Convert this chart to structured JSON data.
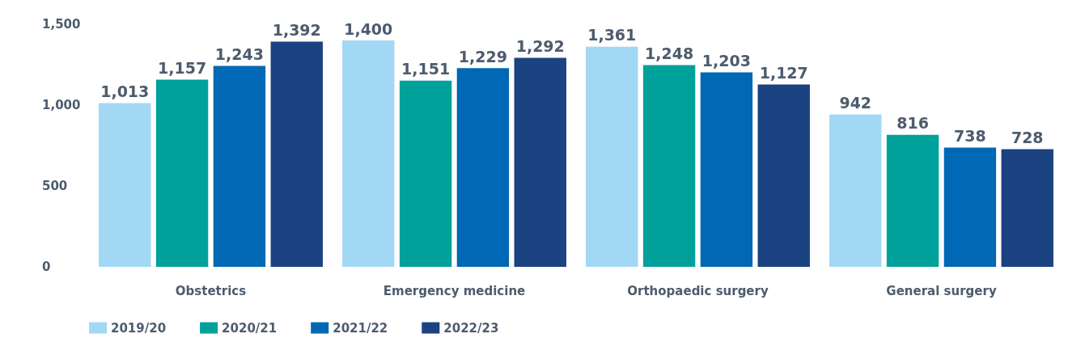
{
  "chart_data": {
    "type": "bar",
    "categories": [
      "Obstetrics",
      "Emergency medicine",
      "Orthopaedic surgery",
      "General surgery"
    ],
    "series": [
      {
        "name": "2019/20",
        "color": "#a3d8f5",
        "values": [
          1013,
          1400,
          1361,
          942
        ],
        "value_labels": [
          "1,013",
          "1,400",
          "1,361",
          "942"
        ]
      },
      {
        "name": "2020/21",
        "color": "#00a19a",
        "values": [
          1157,
          1151,
          1248,
          816
        ],
        "value_labels": [
          "1,157",
          "1,151",
          "1,248",
          "816"
        ]
      },
      {
        "name": "2021/22",
        "color": "#0068b4",
        "values": [
          1243,
          1229,
          1203,
          738
        ],
        "value_labels": [
          "1,243",
          "1,229",
          "1,203",
          "738"
        ]
      },
      {
        "name": "2022/23",
        "color": "#1b4281",
        "values": [
          1392,
          1292,
          1127,
          728
        ],
        "value_labels": [
          "1,392",
          "1,292",
          "1,127",
          "728"
        ]
      }
    ],
    "ylim": [
      0,
      1500
    ],
    "yticks": [
      0,
      500,
      {
        "value": 1000,
        "label": "1,000"
      },
      {
        "value": 1500,
        "label": "1,500"
      }
    ],
    "grid": false,
    "legend": "bottom left"
  }
}
